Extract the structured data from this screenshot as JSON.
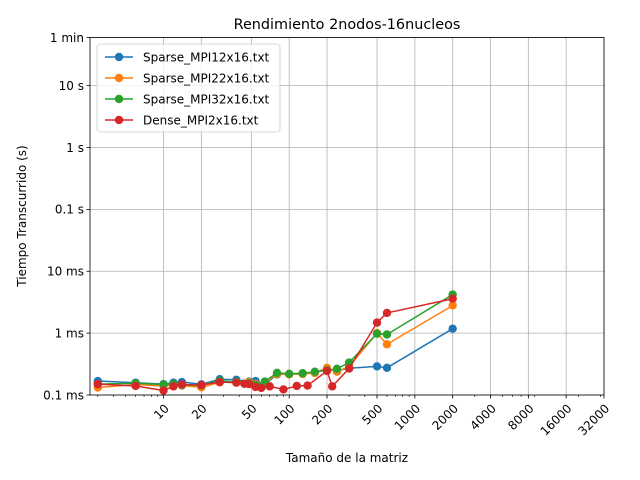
{
  "chart_data": {
    "type": "line",
    "title": "Rendimiento 2nodos-16nucleos",
    "xlabel": "Tamaño de la matriz",
    "ylabel": "Tiempo Transcurrido (s)",
    "xscale": "log",
    "yscale": "log",
    "xlim": [
      2.6,
      32000
    ],
    "ylim": [
      0.0001,
      60
    ],
    "x_ticks": [
      {
        "value": 10,
        "label": "10"
      },
      {
        "value": 20,
        "label": "20"
      },
      {
        "value": 50,
        "label": "50"
      },
      {
        "value": 100,
        "label": "100"
      },
      {
        "value": 200,
        "label": "200"
      },
      {
        "value": 500,
        "label": "500"
      },
      {
        "value": 1000,
        "label": "1000"
      },
      {
        "value": 2000,
        "label": "2000"
      },
      {
        "value": 4000,
        "label": "4000"
      },
      {
        "value": 8000,
        "label": "8000"
      },
      {
        "value": 16000,
        "label": "16000"
      },
      {
        "value": 32000,
        "label": "32000"
      }
    ],
    "y_ticks": [
      {
        "value": 0.0001,
        "label": "0.1 ms"
      },
      {
        "value": 0.001,
        "label": "1 ms"
      },
      {
        "value": 0.01,
        "label": "10 ms"
      },
      {
        "value": 0.1,
        "label": "0.1 s"
      },
      {
        "value": 1,
        "label": "1 s"
      },
      {
        "value": 10,
        "label": "10 s"
      },
      {
        "value": 60,
        "label": "1 min"
      }
    ],
    "grid": true,
    "legend_position": "top-left",
    "series": [
      {
        "name": "Sparse_MPI12x16.txt",
        "color": "#1f77b4",
        "x": [
          3,
          6,
          10,
          12,
          14,
          20,
          28,
          38,
          48,
          54,
          64,
          80,
          100,
          128,
          160,
          200,
          240,
          300,
          500,
          600,
          2000
        ],
        "y": [
          0.000168,
          0.000158,
          0.00015,
          0.000158,
          0.000162,
          0.000149,
          0.00018,
          0.000176,
          0.000165,
          0.000168,
          0.000148,
          0.000215,
          0.000218,
          0.000223,
          0.000228,
          0.00026,
          0.000248,
          0.00027,
          0.00029,
          0.000275,
          0.00118
        ]
      },
      {
        "name": "Sparse_MPI22x16.txt",
        "color": "#ff7f0e",
        "x": [
          3,
          6,
          10,
          12,
          14,
          20,
          28,
          38,
          48,
          54,
          64,
          80,
          100,
          128,
          160,
          200,
          240,
          300,
          500,
          600,
          2000
        ],
        "y": [
          0.000132,
          0.000148,
          0.00014,
          0.000145,
          0.000142,
          0.000133,
          0.00016,
          0.000162,
          0.000162,
          0.00015,
          0.000155,
          0.000218,
          0.000215,
          0.000218,
          0.000228,
          0.000275,
          0.000238,
          0.00029,
          0.001,
          0.00066,
          0.0028
        ]
      },
      {
        "name": "Sparse_MPI32x16.txt",
        "color": "#2ca02c",
        "x": [
          3,
          6,
          10,
          12,
          14,
          20,
          28,
          38,
          48,
          54,
          64,
          80,
          100,
          128,
          160,
          200,
          240,
          300,
          500,
          600,
          2000
        ],
        "y": [
          0.00015,
          0.000155,
          0.000148,
          0.00015,
          0.000145,
          0.000143,
          0.00017,
          0.000162,
          0.000155,
          0.000145,
          0.000165,
          0.000228,
          0.00022,
          0.000225,
          0.000238,
          0.00025,
          0.000265,
          0.000335,
          0.00098,
          0.00095,
          0.0042
        ]
      },
      {
        "name": "Dense_MPI2x16.txt",
        "color": "#d62728",
        "x": [
          3,
          6,
          10,
          12,
          14,
          20,
          28,
          38,
          44,
          48,
          54,
          60,
          70,
          90,
          115,
          140,
          200,
          220,
          300,
          500,
          600,
          2000
        ],
        "y": [
          0.00015,
          0.00014,
          0.000118,
          0.000138,
          0.000148,
          0.000145,
          0.000162,
          0.000158,
          0.000152,
          0.00015,
          0.000135,
          0.00013,
          0.000138,
          0.000123,
          0.00014,
          0.000142,
          0.000245,
          0.000138,
          0.000268,
          0.00148,
          0.00212,
          0.0036
        ]
      }
    ]
  }
}
